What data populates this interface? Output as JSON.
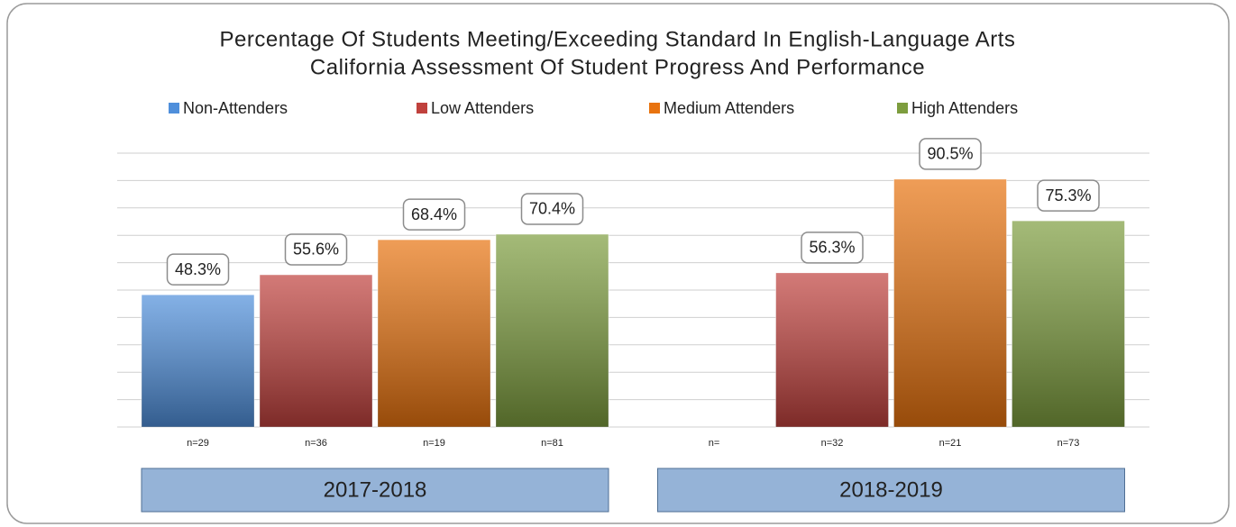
{
  "chart_data": {
    "type": "bar",
    "title": "Percentage Of Students Meeting/Exceeding Standard In English-Language Arts",
    "subtitle": "California Assessment Of Student Progress And Performance",
    "groups": [
      "2017-2018",
      "2018-2019"
    ],
    "series": [
      {
        "name": "Non-Attenders",
        "color": "#4f8fdb",
        "values": [
          48.3,
          null
        ],
        "value_labels": [
          "48.3%",
          null
        ],
        "n_labels": [
          "n=29",
          "n="
        ]
      },
      {
        "name": "Low Attenders",
        "color": "#c0413d",
        "values": [
          55.6,
          56.3
        ],
        "value_labels": [
          "55.6%",
          "56.3%"
        ],
        "n_labels": [
          "n=36",
          "n=32"
        ]
      },
      {
        "name": "Medium Attenders",
        "color": "#e8730f",
        "values": [
          68.4,
          90.5
        ],
        "value_labels": [
          "68.4%",
          "90.5%"
        ],
        "n_labels": [
          "n=19",
          "n=21"
        ]
      },
      {
        "name": "High Attenders",
        "color": "#7d9d3e",
        "values": [
          70.4,
          75.3
        ],
        "value_labels": [
          "70.4%",
          "75.3%"
        ],
        "n_labels": [
          "n=81",
          "n=73"
        ]
      }
    ],
    "ylim": [
      0,
      100
    ],
    "yticks": [
      0,
      10,
      20,
      30,
      40,
      50,
      60,
      70,
      80,
      90,
      100
    ],
    "grid": true
  }
}
